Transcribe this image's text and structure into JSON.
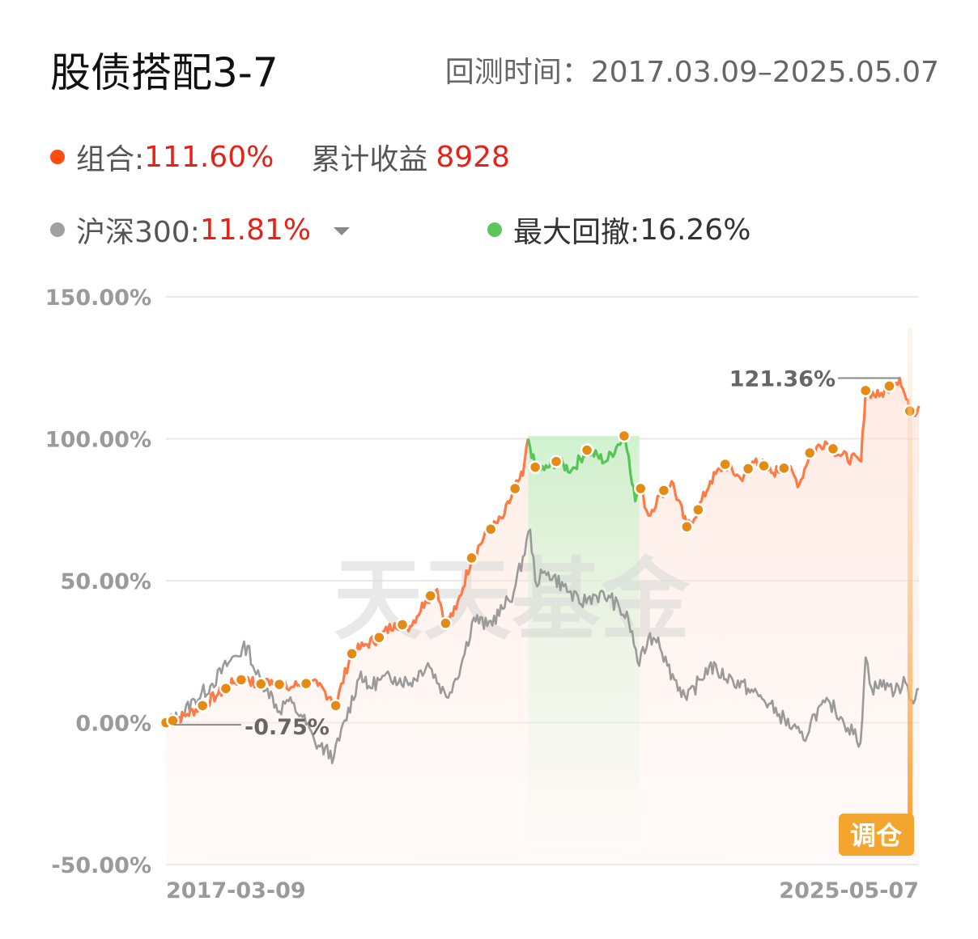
{
  "header": {
    "title": "股债搭配3-7",
    "period_label": "回测时间：2017.03.09–2025.05.07"
  },
  "legend": {
    "portfolio": {
      "name": "组合:",
      "value": "111.60%",
      "extra_label": "累计收益",
      "extra_value": "8928",
      "color": "#ff5a1f"
    },
    "benchmark": {
      "name": "沪深300:",
      "value": "11.81%",
      "color": "#a0a0a0"
    },
    "drawdown": {
      "name": "最大回撤:",
      "value": "16.26%",
      "color": "#5cc85c"
    }
  },
  "chart_data": {
    "type": "line",
    "ylim": [
      -50,
      150
    ],
    "y_ticks": [
      "150.00%",
      "100.00%",
      "50.00%",
      "0.00%",
      "-50.00%"
    ],
    "y_tick_values": [
      150,
      100,
      50,
      0,
      -50
    ],
    "x_ticks": [
      "2017-03-09",
      "2025-05-07"
    ],
    "x_range": [
      "2017-03-09",
      "2025-05-07"
    ],
    "annotations": {
      "max": "121.36%",
      "min": "-0.75%"
    },
    "rebalance_label": "调仓",
    "watermark": "天天基金",
    "drawdown_period": {
      "start": "2021-02-10",
      "end": "2022-04-26"
    },
    "series": [
      {
        "name": "组合",
        "color": "#ff7a45",
        "points": [
          [
            "2017-03-09",
            0
          ],
          [
            "2017-04-15",
            1
          ],
          [
            "2017-06-01",
            3
          ],
          [
            "2017-08-01",
            6
          ],
          [
            "2017-10-01",
            10
          ],
          [
            "2017-12-01",
            14
          ],
          [
            "2018-01-26",
            16
          ],
          [
            "2018-03-01",
            13
          ],
          [
            "2018-05-01",
            15
          ],
          [
            "2018-07-01",
            12
          ],
          [
            "2018-09-01",
            14
          ],
          [
            "2018-11-01",
            13
          ],
          [
            "2018-12-20",
            9
          ],
          [
            "2019-01-10",
            6
          ],
          [
            "2019-03-10",
            24
          ],
          [
            "2019-05-01",
            27
          ],
          [
            "2019-07-01",
            30
          ],
          [
            "2019-09-01",
            35
          ],
          [
            "2019-11-01",
            34
          ],
          [
            "2020-01-01",
            43
          ],
          [
            "2020-02-15",
            47
          ],
          [
            "2020-03-20",
            35
          ],
          [
            "2020-05-01",
            40
          ],
          [
            "2020-07-01",
            58
          ],
          [
            "2020-09-01",
            67
          ],
          [
            "2020-11-01",
            72
          ],
          [
            "2021-01-01",
            85
          ],
          [
            "2021-01-20",
            87
          ],
          [
            "2021-02-10",
            100
          ],
          [
            "2021-03-10",
            90
          ],
          [
            "2021-04-15",
            89
          ],
          [
            "2021-06-01",
            92
          ],
          [
            "2021-08-01",
            89
          ],
          [
            "2021-10-01",
            96
          ],
          [
            "2021-12-15",
            92
          ],
          [
            "2022-02-01",
            98
          ],
          [
            "2022-02-25",
            101
          ],
          [
            "2022-03-15",
            94
          ],
          [
            "2022-04-10",
            78
          ],
          [
            "2022-04-26",
            84
          ],
          [
            "2022-06-01",
            73
          ],
          [
            "2022-07-15",
            80
          ],
          [
            "2022-09-01",
            85
          ],
          [
            "2022-10-31",
            69
          ],
          [
            "2022-12-15",
            75
          ],
          [
            "2023-02-01",
            85
          ],
          [
            "2023-04-01",
            91
          ],
          [
            "2023-06-01",
            86
          ],
          [
            "2023-08-01",
            93
          ],
          [
            "2023-10-01",
            88
          ],
          [
            "2023-12-01",
            90
          ],
          [
            "2024-01-20",
            84
          ],
          [
            "2024-03-01",
            95
          ],
          [
            "2024-05-01",
            99
          ],
          [
            "2024-07-01",
            94
          ],
          [
            "2024-09-20",
            92
          ],
          [
            "2024-10-08",
            117
          ],
          [
            "2024-12-01",
            115
          ],
          [
            "2025-01-15",
            119
          ],
          [
            "2025-02-20",
            121.36
          ],
          [
            "2025-04-07",
            108
          ],
          [
            "2025-05-07",
            111.6
          ]
        ]
      },
      {
        "name": "沪深300",
        "color": "#9a9a9a",
        "points": [
          [
            "2017-03-09",
            0
          ],
          [
            "2017-05-01",
            2
          ],
          [
            "2017-07-01",
            8
          ],
          [
            "2017-09-01",
            13
          ],
          [
            "2017-11-20",
            22
          ],
          [
            "2018-01-26",
            27
          ],
          [
            "2018-03-01",
            17
          ],
          [
            "2018-04-15",
            12
          ],
          [
            "2018-06-01",
            4
          ],
          [
            "2018-07-01",
            8
          ],
          [
            "2018-09-01",
            2
          ],
          [
            "2018-10-20",
            -7
          ],
          [
            "2019-01-03",
            -12
          ],
          [
            "2019-04-20",
            18
          ],
          [
            "2019-05-15",
            12
          ],
          [
            "2019-07-01",
            15
          ],
          [
            "2019-09-01",
            16
          ],
          [
            "2019-11-01",
            14
          ],
          [
            "2020-01-10",
            21
          ],
          [
            "2020-03-23",
            9
          ],
          [
            "2020-05-20",
            20
          ],
          [
            "2020-07-10",
            37
          ],
          [
            "2020-09-01",
            34
          ],
          [
            "2020-11-01",
            40
          ],
          [
            "2020-12-15",
            46
          ],
          [
            "2021-02-18",
            68
          ],
          [
            "2021-03-10",
            50
          ],
          [
            "2021-05-01",
            53
          ],
          [
            "2021-07-01",
            48
          ],
          [
            "2021-09-01",
            42
          ],
          [
            "2021-11-01",
            45
          ],
          [
            "2022-01-01",
            44
          ],
          [
            "2022-03-15",
            36
          ],
          [
            "2022-04-26",
            20
          ],
          [
            "2022-06-01",
            30
          ],
          [
            "2022-07-10",
            30
          ],
          [
            "2022-08-15",
            20
          ],
          [
            "2022-10-31",
            8
          ],
          [
            "2023-01-28",
            20
          ],
          [
            "2023-03-01",
            18
          ],
          [
            "2023-05-01",
            15
          ],
          [
            "2023-07-01",
            12
          ],
          [
            "2023-09-01",
            8
          ],
          [
            "2023-11-01",
            3
          ],
          [
            "2024-02-05",
            -6
          ],
          [
            "2024-03-20",
            3
          ],
          [
            "2024-05-20",
            7
          ],
          [
            "2024-07-01",
            2
          ],
          [
            "2024-09-18",
            -7
          ],
          [
            "2024-10-08",
            23
          ],
          [
            "2024-11-01",
            12
          ],
          [
            "2025-01-01",
            14
          ],
          [
            "2025-02-01",
            11
          ],
          [
            "2025-03-15",
            14
          ],
          [
            "2025-04-08",
            8
          ],
          [
            "2025-05-07",
            11.81
          ]
        ]
      }
    ],
    "rebalance_points": [
      "2017-03-09",
      "2017-04-05",
      "2017-08-01",
      "2017-11-01",
      "2018-01-01",
      "2018-03-20",
      "2018-06-01",
      "2018-09-15",
      "2019-01-10",
      "2019-03-15",
      "2019-07-01",
      "2019-10-01",
      "2020-01-20",
      "2020-03-20",
      "2020-07-01",
      "2020-09-15",
      "2020-12-20",
      "2021-03-10",
      "2021-06-01",
      "2021-10-01",
      "2022-02-25",
      "2022-05-01",
      "2022-08-01",
      "2022-10-31",
      "2022-12-15",
      "2023-04-01",
      "2023-07-01",
      "2023-09-01",
      "2023-11-20",
      "2024-03-01",
      "2024-06-01",
      "2024-10-08",
      "2025-01-10",
      "2025-04-01"
    ]
  }
}
